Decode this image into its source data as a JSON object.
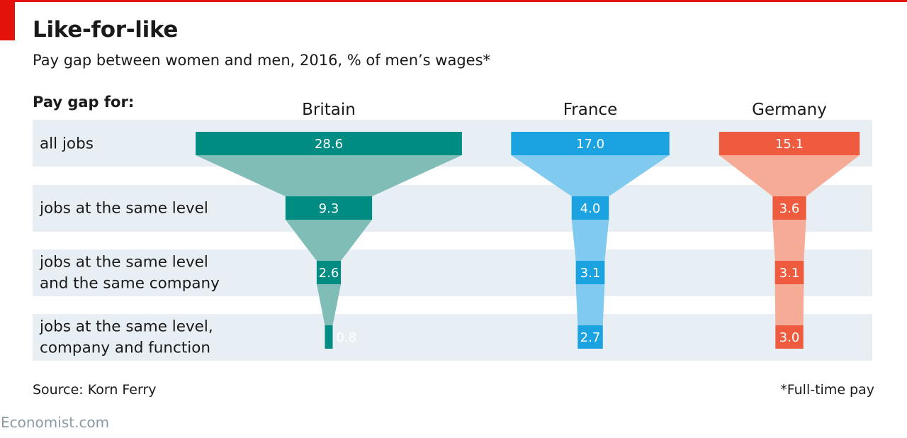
{
  "header": {
    "title": "Like-for-like",
    "subtitle": "Pay gap between women and men, 2016, % of men’s wages*",
    "row_header": "Pay gap for:"
  },
  "footer": {
    "source": "Source: Korn Ferry",
    "footnote": "*Full-time pay",
    "brand": "Economist.com"
  },
  "colors": {
    "accent_red": "#e3120b",
    "band": "#e8eff4"
  },
  "chart_data": {
    "type": "bar",
    "title": "Like-for-like",
    "subtitle": "Pay gap between women and men, 2016, % of men’s wages*",
    "categories": [
      "all jobs",
      "jobs at the same level",
      "jobs at the same level\nand the same company",
      "jobs at the same level,\ncompany and function"
    ],
    "series": [
      {
        "name": "Britain",
        "values": [
          28.6,
          9.3,
          2.6,
          0.8
        ],
        "color": "#008b83",
        "funnel_color": "#80bdb7",
        "label_color": "#008b83"
      },
      {
        "name": "France",
        "values": [
          17.0,
          4.0,
          3.1,
          2.7
        ],
        "color": "#1aa3e0",
        "funnel_color": "#80c9ef",
        "label_color": "#1aa3e0"
      },
      {
        "name": "Germany",
        "values": [
          15.1,
          3.6,
          3.1,
          3.0
        ],
        "color": "#ef5b3f",
        "funnel_color": "#f6ab96",
        "label_color": "#ef5b3f"
      }
    ],
    "value_labels": [
      "28.6",
      "9.3",
      "2.6",
      "0.8",
      "17.0",
      "4.0",
      "3.1",
      "2.7",
      "15.1",
      "3.6",
      "3.1",
      "3.0"
    ],
    "xlabel": "",
    "ylabel": "",
    "grid": false
  }
}
